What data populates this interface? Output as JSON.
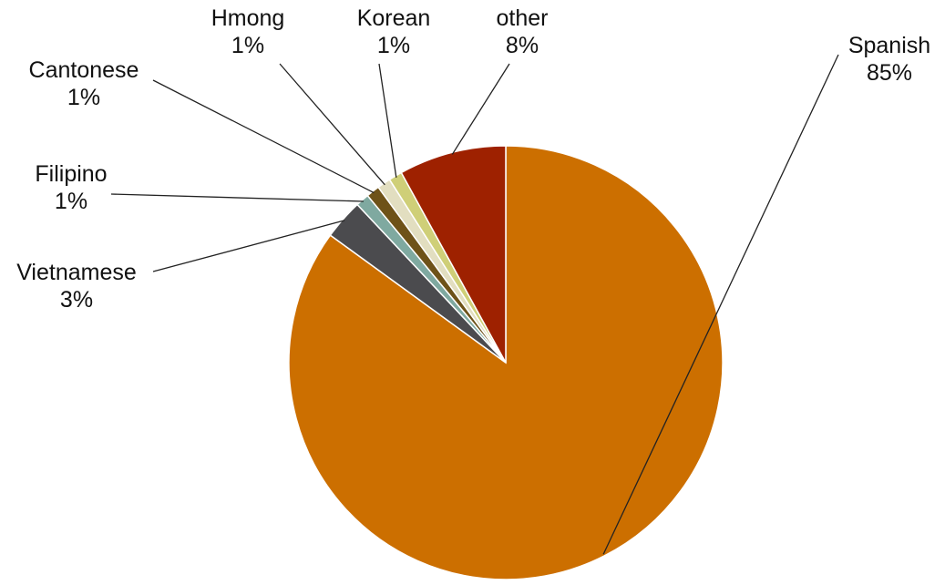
{
  "chart_data": {
    "type": "pie",
    "title": "",
    "slices": [
      {
        "label": "Spanish",
        "percent_label": "85%",
        "value": 85,
        "color": "#CC6F00"
      },
      {
        "label": "Vietnamese",
        "percent_label": "3%",
        "value": 3,
        "color": "#4B4B4E"
      },
      {
        "label": "Filipino",
        "percent_label": "1%",
        "value": 1,
        "color": "#7FA9A0"
      },
      {
        "label": "Cantonese",
        "percent_label": "1%",
        "value": 1,
        "color": "#6E5218"
      },
      {
        "label": "Hmong",
        "percent_label": "1%",
        "value": 1,
        "color": "#E2DEC0"
      },
      {
        "label": "Korean",
        "percent_label": "1%",
        "value": 1,
        "color": "#CFCF78"
      },
      {
        "label": "other",
        "percent_label": "8%",
        "value": 8,
        "color": "#9E2100"
      }
    ],
    "legend": "none",
    "data_labels": "outside with leader lines",
    "start_angle_deg": 0,
    "direction": "clockwise",
    "slice_border_color": "#ffffff"
  }
}
